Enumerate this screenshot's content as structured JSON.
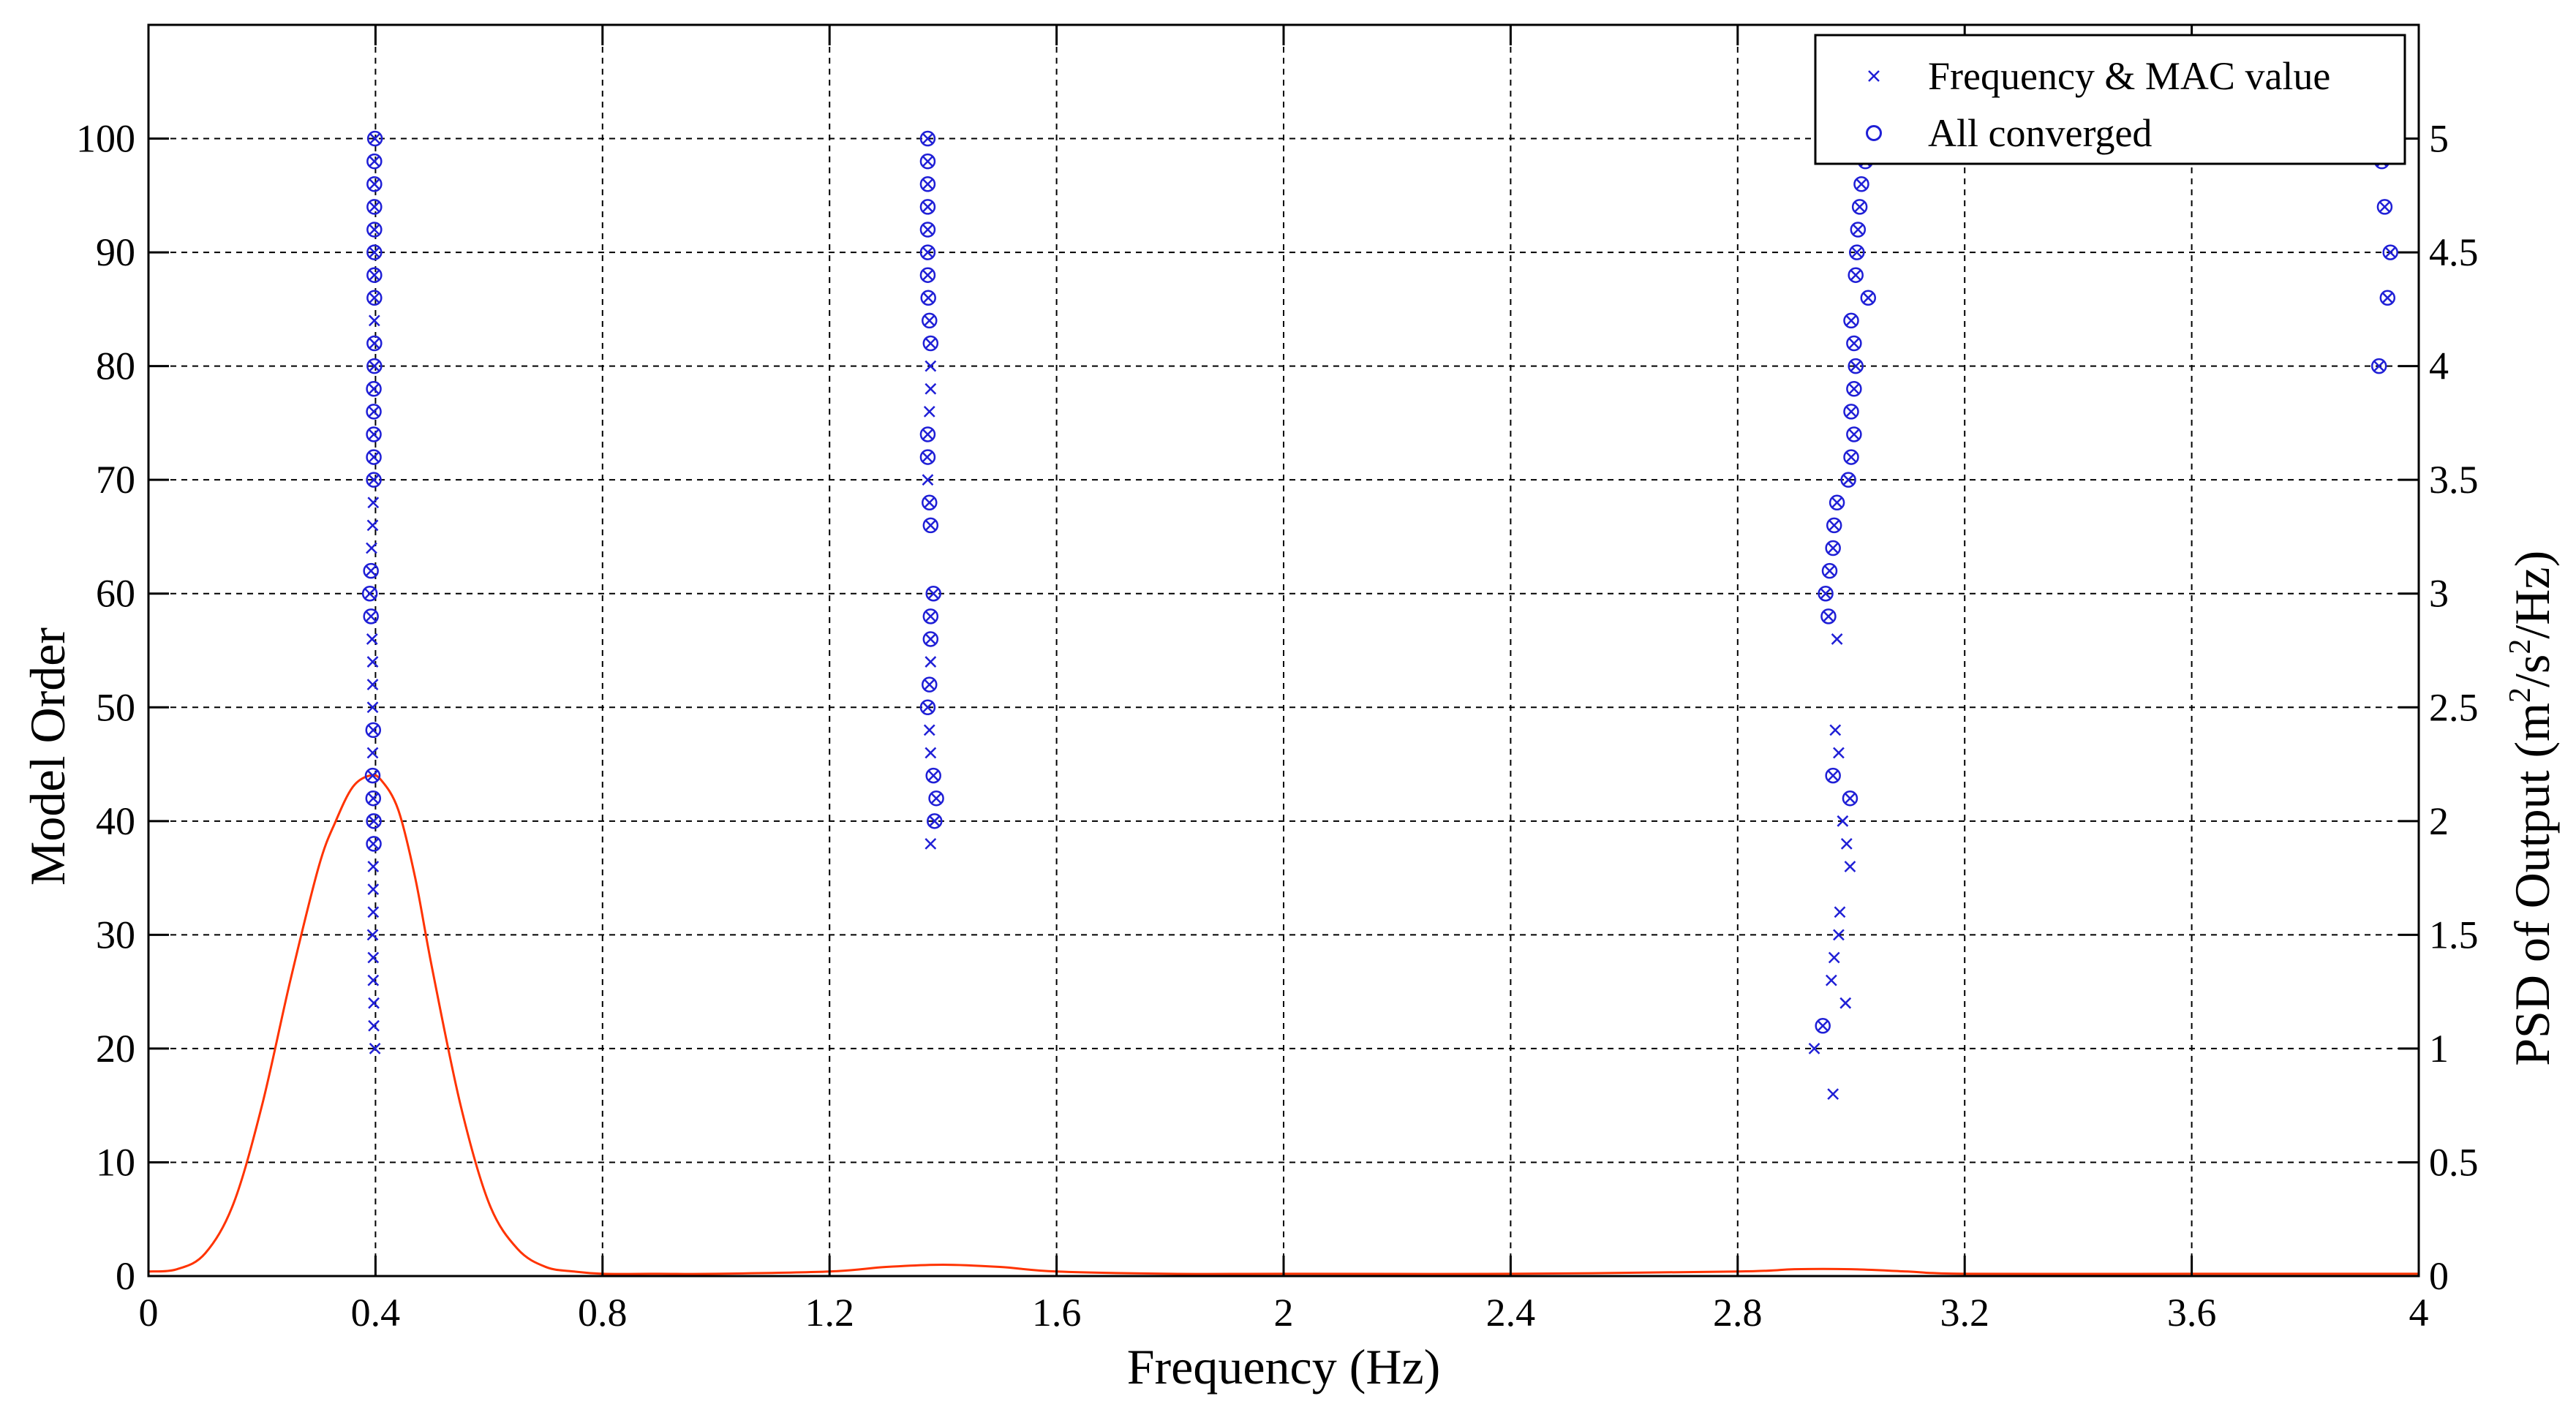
{
  "chart_data": {
    "type": "scatter",
    "title": "",
    "xlabel": "Frequency (Hz)",
    "ylabel_left": "Model Order",
    "ylabel_right_parts": [
      "PSD of Output (m",
      "2",
      "/s",
      "2",
      "/Hz)"
    ],
    "xlim": [
      0,
      4
    ],
    "ylim_left": [
      0,
      110
    ],
    "ylim_right": [
      0,
      5.5
    ],
    "x_ticks": [
      0,
      0.4,
      0.8,
      1.2,
      1.6,
      2,
      2.4,
      2.8,
      3.2,
      3.6,
      4
    ],
    "x_tick_labels": [
      "0",
      "0.4",
      "0.8",
      "1.2",
      "1.6",
      "2",
      "2.4",
      "2.8",
      "3.2",
      "3.6",
      "4"
    ],
    "y_left_ticks": [
      0,
      10,
      20,
      30,
      40,
      50,
      60,
      70,
      80,
      90,
      100
    ],
    "y_left_tick_labels": [
      "0",
      "10",
      "20",
      "30",
      "40",
      "50",
      "60",
      "70",
      "80",
      "90",
      "100"
    ],
    "y_right_ticks": [
      0,
      0.5,
      1,
      1.5,
      2,
      2.5,
      3,
      3.5,
      4,
      4.5,
      5
    ],
    "y_right_tick_labels": [
      "0",
      "0.5",
      "1",
      "1.5",
      "2",
      "2.5",
      "3",
      "3.5",
      "4",
      "4.5",
      "5"
    ],
    "grid": true,
    "legend_position": "top-right",
    "colors": {
      "markers": "#1f1fd6",
      "psd_line": "#ff3300",
      "axes": "#000000",
      "grid": "#000000"
    },
    "series": [
      {
        "name": "Frequency & MAC value",
        "marker": "x",
        "points": [
          [
            0.399,
            20
          ],
          [
            0.397,
            22
          ],
          [
            0.397,
            24
          ],
          [
            0.396,
            26
          ],
          [
            0.396,
            28
          ],
          [
            0.395,
            30
          ],
          [
            0.396,
            32
          ],
          [
            0.396,
            34
          ],
          [
            0.396,
            36
          ],
          [
            0.396,
            38
          ],
          [
            0.397,
            40
          ],
          [
            0.396,
            42
          ],
          [
            0.395,
            44
          ],
          [
            0.395,
            46
          ],
          [
            0.396,
            48
          ],
          [
            0.395,
            50
          ],
          [
            0.395,
            52
          ],
          [
            0.395,
            54
          ],
          [
            0.394,
            56
          ],
          [
            0.392,
            58
          ],
          [
            0.39,
            60
          ],
          [
            0.392,
            62
          ],
          [
            0.393,
            64
          ],
          [
            0.395,
            66
          ],
          [
            0.396,
            68
          ],
          [
            0.397,
            70
          ],
          [
            0.397,
            72
          ],
          [
            0.397,
            74
          ],
          [
            0.397,
            76
          ],
          [
            0.397,
            78
          ],
          [
            0.398,
            80
          ],
          [
            0.398,
            82
          ],
          [
            0.398,
            84
          ],
          [
            0.398,
            86
          ],
          [
            0.398,
            88
          ],
          [
            0.398,
            90
          ],
          [
            0.398,
            92
          ],
          [
            0.398,
            94
          ],
          [
            0.398,
            96
          ],
          [
            0.398,
            98
          ],
          [
            0.399,
            100
          ],
          [
            1.378,
            38
          ],
          [
            1.385,
            40
          ],
          [
            1.388,
            42
          ],
          [
            1.383,
            44
          ],
          [
            1.378,
            46
          ],
          [
            1.376,
            48
          ],
          [
            1.373,
            50
          ],
          [
            1.376,
            52
          ],
          [
            1.378,
            54
          ],
          [
            1.378,
            56
          ],
          [
            1.378,
            58
          ],
          [
            1.383,
            60
          ],
          [
            1.378,
            66
          ],
          [
            1.376,
            68
          ],
          [
            1.373,
            70
          ],
          [
            1.372,
            72
          ],
          [
            1.373,
            74
          ],
          [
            1.376,
            76
          ],
          [
            1.378,
            78
          ],
          [
            1.378,
            80
          ],
          [
            1.378,
            82
          ],
          [
            1.376,
            84
          ],
          [
            1.374,
            86
          ],
          [
            1.373,
            88
          ],
          [
            1.373,
            90
          ],
          [
            1.373,
            92
          ],
          [
            1.373,
            94
          ],
          [
            1.373,
            96
          ],
          [
            1.373,
            98
          ],
          [
            1.373,
            100
          ],
          [
            2.968,
            16
          ],
          [
            2.935,
            20
          ],
          [
            2.95,
            22
          ],
          [
            2.99,
            24
          ],
          [
            2.965,
            26
          ],
          [
            2.97,
            28
          ],
          [
            2.978,
            30
          ],
          [
            2.98,
            32
          ],
          [
            2.998,
            36
          ],
          [
            2.992,
            38
          ],
          [
            2.985,
            40
          ],
          [
            2.998,
            42
          ],
          [
            2.968,
            44
          ],
          [
            2.978,
            46
          ],
          [
            2.972,
            48
          ],
          [
            2.975,
            56
          ],
          [
            2.96,
            58
          ],
          [
            2.955,
            60
          ],
          [
            2.962,
            62
          ],
          [
            2.968,
            64
          ],
          [
            2.97,
            66
          ],
          [
            2.975,
            68
          ],
          [
            2.995,
            70
          ],
          [
            3.0,
            72
          ],
          [
            3.005,
            74
          ],
          [
            3.0,
            76
          ],
          [
            3.005,
            78
          ],
          [
            3.008,
            80
          ],
          [
            3.005,
            82
          ],
          [
            3.0,
            84
          ],
          [
            3.03,
            86
          ],
          [
            3.008,
            88
          ],
          [
            3.01,
            90
          ],
          [
            3.012,
            92
          ],
          [
            3.015,
            94
          ],
          [
            3.018,
            96
          ],
          [
            3.025,
            98
          ],
          [
            3.03,
            100
          ],
          [
            3.93,
            80
          ],
          [
            3.945,
            86
          ],
          [
            3.95,
            90
          ],
          [
            3.94,
            94
          ],
          [
            3.935,
            98
          ],
          [
            3.935,
            100
          ]
        ]
      },
      {
        "name": "All converged",
        "marker": "o",
        "points": [
          [
            0.397,
            38
          ],
          [
            0.397,
            40
          ],
          [
            0.396,
            42
          ],
          [
            0.395,
            44
          ],
          [
            0.396,
            48
          ],
          [
            0.392,
            58
          ],
          [
            0.39,
            60
          ],
          [
            0.392,
            62
          ],
          [
            0.397,
            70
          ],
          [
            0.397,
            72
          ],
          [
            0.397,
            74
          ],
          [
            0.397,
            76
          ],
          [
            0.397,
            78
          ],
          [
            0.398,
            80
          ],
          [
            0.398,
            82
          ],
          [
            0.398,
            86
          ],
          [
            0.398,
            88
          ],
          [
            0.398,
            90
          ],
          [
            0.398,
            92
          ],
          [
            0.398,
            94
          ],
          [
            0.398,
            96
          ],
          [
            0.398,
            98
          ],
          [
            0.399,
            100
          ],
          [
            1.385,
            40
          ],
          [
            1.388,
            42
          ],
          [
            1.383,
            44
          ],
          [
            1.373,
            50
          ],
          [
            1.376,
            52
          ],
          [
            1.378,
            56
          ],
          [
            1.378,
            58
          ],
          [
            1.383,
            60
          ],
          [
            1.378,
            66
          ],
          [
            1.376,
            68
          ],
          [
            1.373,
            72
          ],
          [
            1.373,
            74
          ],
          [
            1.378,
            82
          ],
          [
            1.376,
            84
          ],
          [
            1.374,
            86
          ],
          [
            1.373,
            88
          ],
          [
            1.373,
            90
          ],
          [
            1.373,
            92
          ],
          [
            1.373,
            94
          ],
          [
            1.373,
            96
          ],
          [
            1.373,
            98
          ],
          [
            1.373,
            100
          ],
          [
            2.95,
            22
          ],
          [
            2.998,
            42
          ],
          [
            2.968,
            44
          ],
          [
            2.96,
            58
          ],
          [
            2.955,
            60
          ],
          [
            2.962,
            62
          ],
          [
            2.968,
            64
          ],
          [
            2.97,
            66
          ],
          [
            2.975,
            68
          ],
          [
            2.995,
            70
          ],
          [
            3.0,
            72
          ],
          [
            3.005,
            74
          ],
          [
            3.0,
            76
          ],
          [
            3.005,
            78
          ],
          [
            3.008,
            80
          ],
          [
            3.005,
            82
          ],
          [
            3.0,
            84
          ],
          [
            3.03,
            86
          ],
          [
            3.008,
            88
          ],
          [
            3.01,
            90
          ],
          [
            3.012,
            92
          ],
          [
            3.015,
            94
          ],
          [
            3.018,
            96
          ],
          [
            3.025,
            98
          ],
          [
            3.03,
            100
          ],
          [
            3.93,
            80
          ],
          [
            3.945,
            86
          ],
          [
            3.95,
            90
          ],
          [
            3.94,
            94
          ],
          [
            3.935,
            98
          ],
          [
            3.935,
            100
          ]
        ]
      },
      {
        "name": "PSD of Output",
        "type": "line",
        "axis": "right",
        "x": [
          0,
          0.05,
          0.1,
          0.15,
          0.2,
          0.25,
          0.3,
          0.33,
          0.36,
          0.39,
          0.41,
          0.44,
          0.47,
          0.5,
          0.55,
          0.6,
          0.65,
          0.7,
          0.75,
          0.8,
          0.9,
          1.0,
          1.2,
          1.3,
          1.4,
          1.5,
          1.6,
          1.8,
          2.0,
          2.4,
          2.8,
          2.9,
          3.0,
          3.1,
          3.2,
          3.6,
          4.0
        ],
        "y": [
          0.02,
          0.03,
          0.1,
          0.32,
          0.75,
          1.3,
          1.8,
          2.0,
          2.15,
          2.2,
          2.18,
          2.05,
          1.75,
          1.35,
          0.75,
          0.32,
          0.12,
          0.04,
          0.02,
          0.01,
          0.01,
          0.01,
          0.02,
          0.04,
          0.05,
          0.04,
          0.02,
          0.01,
          0.01,
          0.01,
          0.02,
          0.03,
          0.03,
          0.02,
          0.01,
          0.01,
          0.01
        ]
      }
    ]
  }
}
